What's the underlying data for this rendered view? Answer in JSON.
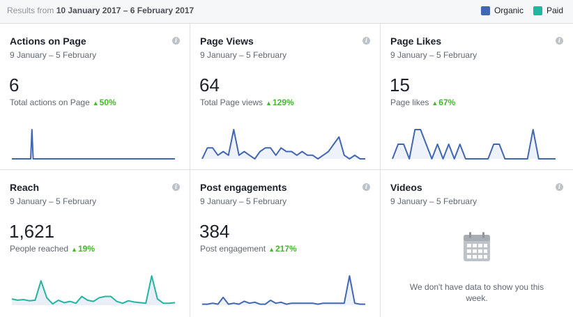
{
  "header": {
    "range_prefix": "Results from",
    "range_value": "10 January 2017 – 6 February 2017",
    "legend": [
      {
        "label": "Organic",
        "color": "#4267b2"
      },
      {
        "label": "Paid",
        "color": "#23b5a0"
      }
    ]
  },
  "cards": [
    {
      "title": "Actions on Page",
      "dates": "9 January – 5 February",
      "value": "6",
      "label": "Total actions on Page",
      "change": "50%",
      "color": "#4267b2",
      "series": [
        0,
        0,
        0,
        0,
        0,
        0,
        0,
        0,
        0,
        0,
        0,
        0,
        0,
        0,
        0,
        0,
        1,
        0,
        0,
        0,
        0,
        0,
        0,
        0,
        0,
        0,
        0,
        0,
        0,
        0,
        0,
        0,
        0,
        0,
        0,
        0,
        0,
        0,
        0,
        0,
        0,
        0,
        0,
        0,
        0,
        0,
        0,
        0,
        0,
        0,
        0,
        0,
        0,
        0,
        0,
        0,
        0,
        0,
        0,
        0,
        0,
        0,
        0,
        0,
        0,
        0,
        0,
        0,
        0,
        0,
        0,
        0,
        0,
        0,
        0,
        0,
        0,
        0,
        0,
        0,
        0,
        0,
        0,
        0,
        0,
        0,
        0,
        0,
        0,
        0,
        0,
        0,
        0,
        0,
        0,
        0,
        0,
        0,
        0,
        0,
        0,
        0,
        0,
        0,
        0,
        0,
        0,
        0,
        0,
        0,
        0,
        0,
        0,
        0,
        0,
        0,
        0,
        0,
        0,
        0,
        0,
        0,
        0,
        0,
        0,
        0,
        0,
        0,
        0,
        0,
        0
      ]
    },
    {
      "title": "Page Views",
      "dates": "9 January – 5 February",
      "value": "64",
      "label": "Total Page views",
      "change": "129%",
      "color": "#4267b2",
      "series": [
        0,
        3,
        3,
        1,
        2,
        1,
        8,
        1,
        2,
        1,
        0,
        2,
        3,
        3,
        1,
        3,
        2,
        2,
        1,
        2,
        1,
        1,
        0,
        1,
        2,
        4,
        6,
        1,
        0,
        1,
        0,
        0
      ]
    },
    {
      "title": "Page Likes",
      "dates": "9 January – 5 February",
      "value": "15",
      "label": "Page likes",
      "change": "67%",
      "color": "#4267b2",
      "series": [
        0,
        1,
        1,
        0,
        2,
        2,
        1,
        0,
        1,
        0,
        1,
        0,
        1,
        0,
        0,
        0,
        0,
        0,
        1,
        1,
        0,
        0,
        0,
        0,
        0,
        2,
        0,
        0,
        0,
        0
      ]
    },
    {
      "title": "Reach",
      "dates": "9 January – 5 February",
      "value": "1,621",
      "label": "People reached",
      "change": "19%",
      "color": "#23b5a0",
      "series": [
        10,
        8,
        9,
        7,
        8,
        39,
        12,
        2,
        8,
        4,
        6,
        3,
        14,
        8,
        6,
        12,
        14,
        14,
        6,
        3,
        7,
        5,
        4,
        3,
        47,
        10,
        3,
        3,
        4
      ]
    },
    {
      "title": "Post engagements",
      "dates": "9 January – 5 February",
      "value": "384",
      "label": "Post engagement",
      "change": "217%",
      "color": "#4267b2",
      "series": [
        1,
        1,
        2,
        1,
        8,
        1,
        2,
        1,
        4,
        2,
        3,
        1,
        1,
        5,
        2,
        3,
        1,
        2,
        2,
        2,
        2,
        2,
        1,
        2,
        2,
        2,
        2,
        2,
        30,
        2,
        1,
        1
      ]
    },
    {
      "title": "Videos",
      "dates": "9 January – 5 February",
      "empty_message": "We don't have data to show you this week."
    }
  ]
}
